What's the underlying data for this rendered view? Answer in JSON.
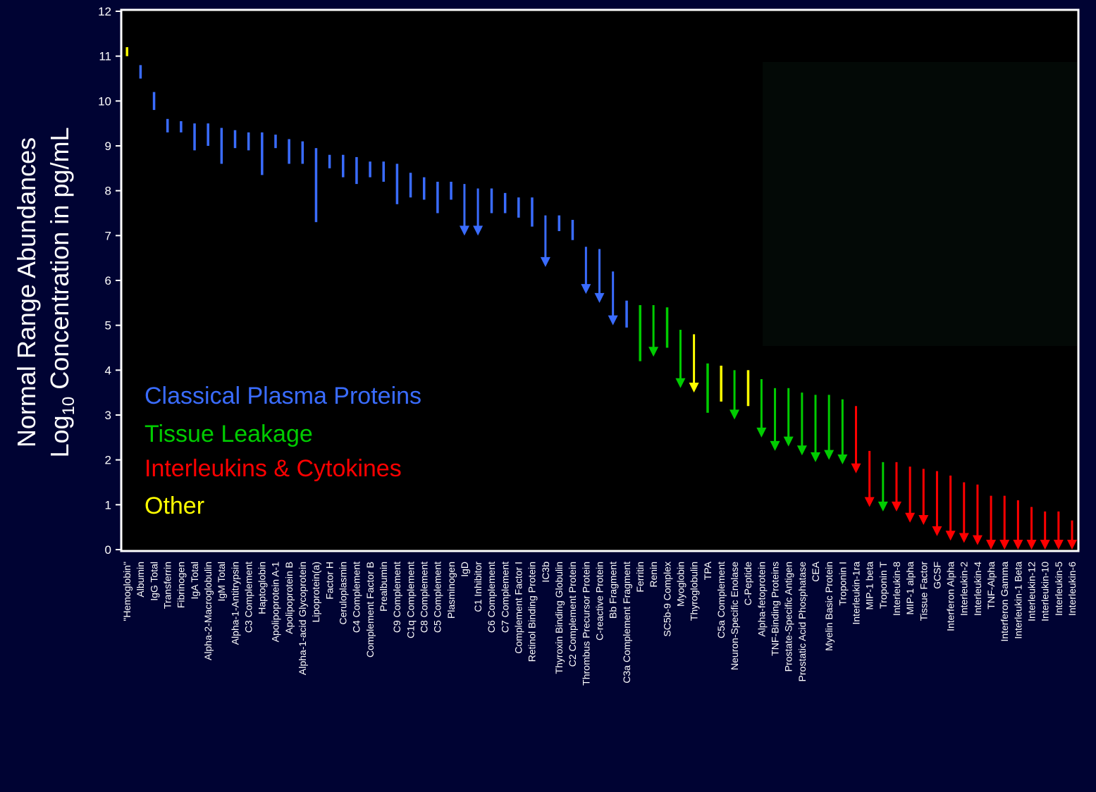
{
  "chart_data": {
    "type": "range-bar",
    "ylabel": {
      "line1": "Normal Range Abundances",
      "line2_prefix": "Log",
      "line2_sub": "10",
      "line2_suffix": " Concentration in pg/mL"
    },
    "ylim": [
      0,
      12
    ],
    "yticks": [
      "0",
      "1",
      "2",
      "3",
      "4",
      "5",
      "6",
      "7",
      "8",
      "9",
      "10",
      "11",
      "12"
    ],
    "grid": false,
    "legend_position": "left-middle",
    "colors": {
      "classical": "#3a6cff",
      "tissue": "#00cc00",
      "interleukin": "#ff0000",
      "other": "#ffff00",
      "plot_background": "#000000",
      "page_background": "#000333",
      "axis": "#ffffff"
    },
    "legend": [
      {
        "key": "classical",
        "label": "Classical Plasma Proteins"
      },
      {
        "key": "tissue",
        "label": "Tissue Leakage"
      },
      {
        "key": "interleukin",
        "label": "Interleukins & Cytokines"
      },
      {
        "key": "other",
        "label": "Other"
      }
    ],
    "items": [
      {
        "label": "\"Hemoglobin\"",
        "group": "other",
        "high": 11.2,
        "low": 11.0,
        "arrow": false
      },
      {
        "label": "Albumin",
        "group": "classical",
        "high": 10.8,
        "low": 10.5,
        "arrow": false
      },
      {
        "label": "IgG Total",
        "group": "classical",
        "high": 10.2,
        "low": 9.8,
        "arrow": false
      },
      {
        "label": "Transferrin",
        "group": "classical",
        "high": 9.6,
        "low": 9.3,
        "arrow": false
      },
      {
        "label": "Fibrinogen",
        "group": "classical",
        "high": 9.55,
        "low": 9.3,
        "arrow": false
      },
      {
        "label": "IgA Total",
        "group": "classical",
        "high": 9.5,
        "low": 8.9,
        "arrow": false
      },
      {
        "label": "Alpha-2-Macroglobulin",
        "group": "classical",
        "high": 9.5,
        "low": 9.0,
        "arrow": false
      },
      {
        "label": "IgM Total",
        "group": "classical",
        "high": 9.4,
        "low": 8.6,
        "arrow": false
      },
      {
        "label": "Alpha-1-Antitrypsin",
        "group": "classical",
        "high": 9.35,
        "low": 8.95,
        "arrow": false
      },
      {
        "label": "C3 Complement",
        "group": "classical",
        "high": 9.3,
        "low": 8.9,
        "arrow": false
      },
      {
        "label": "Haptoglobin",
        "group": "classical",
        "high": 9.3,
        "low": 8.35,
        "arrow": false
      },
      {
        "label": "Apolipoprotein A-1",
        "group": "classical",
        "high": 9.25,
        "low": 8.95,
        "arrow": false
      },
      {
        "label": "Apolipoprotein B",
        "group": "classical",
        "high": 9.15,
        "low": 8.6,
        "arrow": false
      },
      {
        "label": "Alpha-1-acid Glycoprotein",
        "group": "classical",
        "high": 9.1,
        "low": 8.6,
        "arrow": false
      },
      {
        "label": "Lipoprotein(a)",
        "group": "classical",
        "high": 8.95,
        "low": 7.3,
        "arrow": false
      },
      {
        "label": "Factor H",
        "group": "classical",
        "high": 8.8,
        "low": 8.5,
        "arrow": false
      },
      {
        "label": "Ceruloplasmin",
        "group": "classical",
        "high": 8.8,
        "low": 8.3,
        "arrow": false
      },
      {
        "label": "C4 Complement",
        "group": "classical",
        "high": 8.75,
        "low": 8.15,
        "arrow": false
      },
      {
        "label": "Complement Factor B",
        "group": "classical",
        "high": 8.65,
        "low": 8.3,
        "arrow": false
      },
      {
        "label": "Prealbumin",
        "group": "classical",
        "high": 8.65,
        "low": 8.2,
        "arrow": false
      },
      {
        "label": "C9 Complement",
        "group": "classical",
        "high": 8.6,
        "low": 7.7,
        "arrow": false
      },
      {
        "label": "C1q Complement",
        "group": "classical",
        "high": 8.4,
        "low": 7.85,
        "arrow": false
      },
      {
        "label": "C8 Complement",
        "group": "classical",
        "high": 8.3,
        "low": 7.8,
        "arrow": false
      },
      {
        "label": "C5 Complement",
        "group": "classical",
        "high": 8.2,
        "low": 7.5,
        "arrow": false
      },
      {
        "label": "Plasminogen",
        "group": "classical",
        "high": 8.2,
        "low": 7.8,
        "arrow": false
      },
      {
        "label": "IgD",
        "group": "classical",
        "high": 8.15,
        "low": 7.0,
        "arrow": true
      },
      {
        "label": "C1 Inhibitor",
        "group": "classical",
        "high": 8.05,
        "low": 7.0,
        "arrow": true
      },
      {
        "label": "C6 Complement",
        "group": "classical",
        "high": 8.05,
        "low": 7.5,
        "arrow": false
      },
      {
        "label": "C7 Complement",
        "group": "classical",
        "high": 7.95,
        "low": 7.5,
        "arrow": false
      },
      {
        "label": "Complement Factor I",
        "group": "classical",
        "high": 7.85,
        "low": 7.4,
        "arrow": false
      },
      {
        "label": "Retinol Binding Protein",
        "group": "classical",
        "high": 7.85,
        "low": 7.2,
        "arrow": false
      },
      {
        "label": "IC3b",
        "group": "classical",
        "high": 7.45,
        "low": 6.3,
        "arrow": true
      },
      {
        "label": "Thyroxin Binding Globulin",
        "group": "classical",
        "high": 7.45,
        "low": 7.1,
        "arrow": false
      },
      {
        "label": "C2 Complement Protein",
        "group": "classical",
        "high": 7.35,
        "low": 6.9,
        "arrow": false
      },
      {
        "label": "Thrombus Precursor Protein",
        "group": "classical",
        "high": 6.75,
        "low": 5.7,
        "arrow": true
      },
      {
        "label": "C-reactive Protein",
        "group": "classical",
        "high": 6.7,
        "low": 5.5,
        "arrow": true
      },
      {
        "label": "Bb Fragment",
        "group": "classical",
        "high": 6.2,
        "low": 5.0,
        "arrow": true
      },
      {
        "label": "C3a Complement Fragment",
        "group": "classical",
        "high": 5.55,
        "low": 4.95,
        "arrow": false
      },
      {
        "label": "Ferritin",
        "group": "tissue",
        "high": 5.45,
        "low": 4.2,
        "arrow": false
      },
      {
        "label": "Renin",
        "group": "tissue",
        "high": 5.45,
        "low": 4.3,
        "arrow": true
      },
      {
        "label": "SC5b-9 Complex",
        "group": "tissue",
        "high": 5.4,
        "low": 4.5,
        "arrow": false
      },
      {
        "label": "Myoglobin",
        "group": "tissue",
        "high": 4.9,
        "low": 3.6,
        "arrow": true
      },
      {
        "label": "Thyroglobulin",
        "group": "other",
        "high": 4.8,
        "low": 3.5,
        "arrow": true
      },
      {
        "label": "TPA",
        "group": "tissue",
        "high": 4.15,
        "low": 3.05,
        "arrow": false
      },
      {
        "label": "C5a Complement",
        "group": "other",
        "high": 4.1,
        "low": 3.3,
        "arrow": false
      },
      {
        "label": "Neuron-Specific Enolase",
        "group": "tissue",
        "high": 4.0,
        "low": 2.9,
        "arrow": true
      },
      {
        "label": "C-Peptide",
        "group": "other",
        "high": 4.0,
        "low": 3.2,
        "arrow": false
      },
      {
        "label": "Alpha-fetoprotein",
        "group": "tissue",
        "high": 3.8,
        "low": 2.5,
        "arrow": true
      },
      {
        "label": "TNF-Binding Proteins",
        "group": "tissue",
        "high": 3.6,
        "low": 2.2,
        "arrow": true
      },
      {
        "label": "Prostate-Specific Antigen",
        "group": "tissue",
        "high": 3.6,
        "low": 2.3,
        "arrow": true
      },
      {
        "label": "Prostatic Acid Phosphatase",
        "group": "tissue",
        "high": 3.5,
        "low": 2.1,
        "arrow": true
      },
      {
        "label": "CEA",
        "group": "tissue",
        "high": 3.45,
        "low": 1.95,
        "arrow": true
      },
      {
        "label": "Myelin Basic Protein",
        "group": "tissue",
        "high": 3.45,
        "low": 2.0,
        "arrow": true
      },
      {
        "label": "Troponin I",
        "group": "tissue",
        "high": 3.35,
        "low": 1.9,
        "arrow": true
      },
      {
        "label": "Interleukin-1ra",
        "group": "interleukin",
        "high": 3.2,
        "low": 1.7,
        "arrow": true
      },
      {
        "label": "MIP-1 beta",
        "group": "interleukin",
        "high": 2.2,
        "low": 0.95,
        "arrow": true
      },
      {
        "label": "Troponin T",
        "group": "tissue",
        "high": 1.95,
        "low": 0.85,
        "arrow": true
      },
      {
        "label": "Interleukin-8",
        "group": "interleukin",
        "high": 1.95,
        "low": 0.85,
        "arrow": true
      },
      {
        "label": "MIP-1 alpha",
        "group": "interleukin",
        "high": 1.85,
        "low": 0.6,
        "arrow": true
      },
      {
        "label": "Tissue Factor",
        "group": "interleukin",
        "high": 1.8,
        "low": 0.55,
        "arrow": true
      },
      {
        "label": "GCSF",
        "group": "interleukin",
        "high": 1.75,
        "low": 0.3,
        "arrow": true
      },
      {
        "label": "Interferon Alpha",
        "group": "interleukin",
        "high": 1.65,
        "low": 0.2,
        "arrow": true
      },
      {
        "label": "Interleukin-2",
        "group": "interleukin",
        "high": 1.5,
        "low": 0.15,
        "arrow": true
      },
      {
        "label": "Interleukin-4",
        "group": "interleukin",
        "high": 1.45,
        "low": 0.1,
        "arrow": true
      },
      {
        "label": "TNF-Alpha",
        "group": "interleukin",
        "high": 1.2,
        "low": 0.0,
        "arrow": true
      },
      {
        "label": "Interferon Gamma",
        "group": "interleukin",
        "high": 1.2,
        "low": 0.0,
        "arrow": true
      },
      {
        "label": "Interleukin-1 Beta",
        "group": "interleukin",
        "high": 1.1,
        "low": 0.0,
        "arrow": true
      },
      {
        "label": "Interleukin-12",
        "group": "interleukin",
        "high": 0.95,
        "low": 0.0,
        "arrow": true
      },
      {
        "label": "Interleukin-10",
        "group": "interleukin",
        "high": 0.85,
        "low": 0.0,
        "arrow": true
      },
      {
        "label": "Interleukin-5",
        "group": "interleukin",
        "high": 0.85,
        "low": 0.0,
        "arrow": true
      },
      {
        "label": "Interleukin-6",
        "group": "interleukin",
        "high": 0.65,
        "low": 0.0,
        "arrow": true
      }
    ]
  }
}
